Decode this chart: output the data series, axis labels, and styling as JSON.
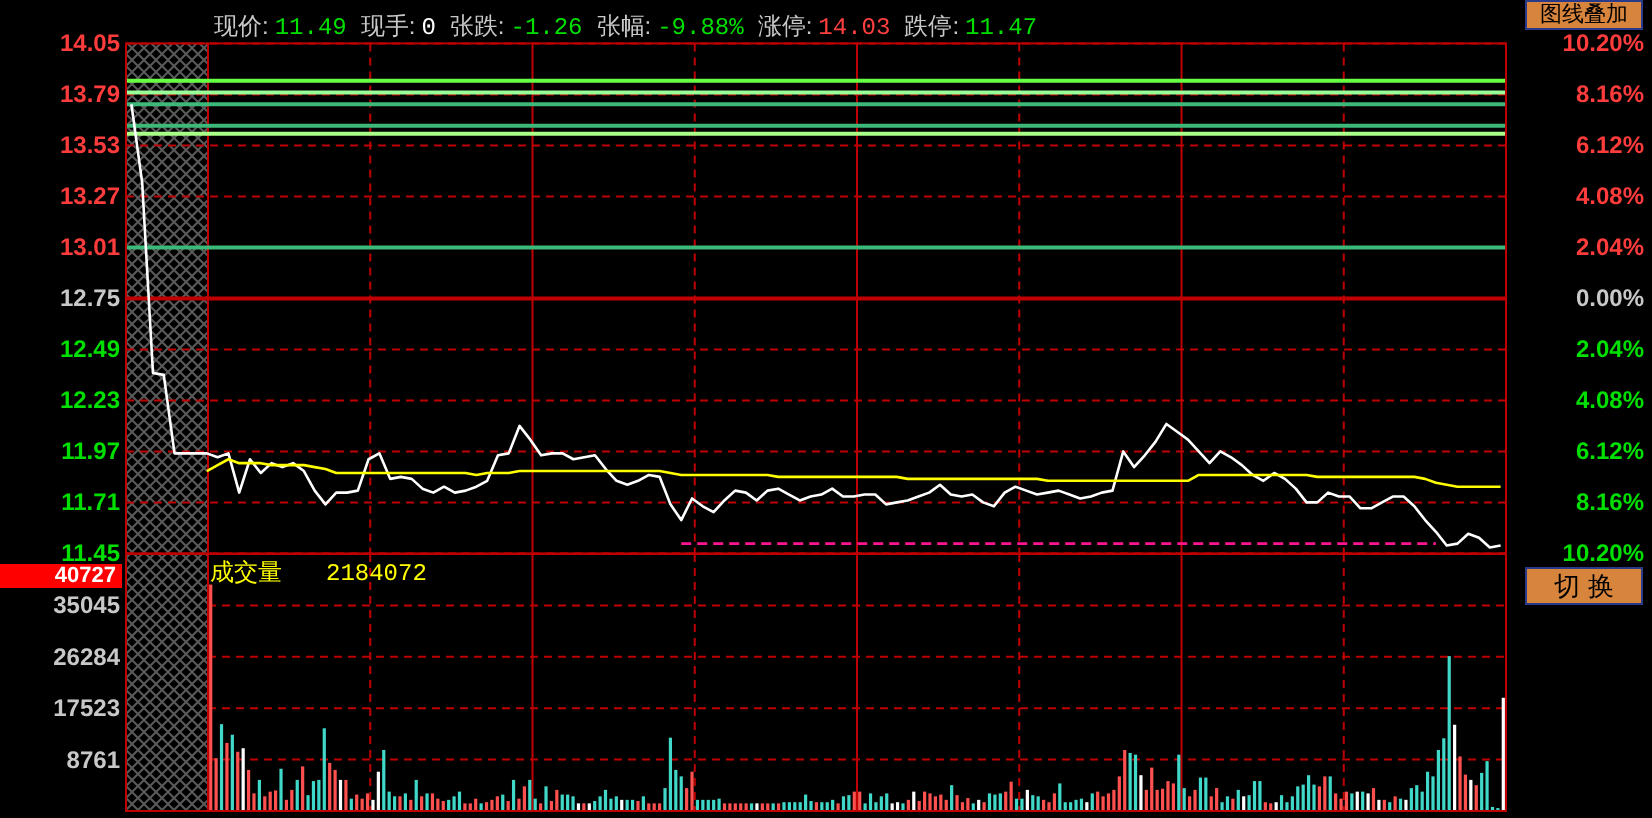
{
  "chart_data": [
    {
      "type": "line",
      "categories": [
        null,
        null,
        null,
        null,
        null,
        null,
        null,
        null,
        null,
        null,
        null,
        null,
        null,
        null,
        null,
        null,
        null,
        null,
        null,
        null,
        null,
        null,
        null,
        null,
        null,
        null,
        null,
        null,
        null,
        null,
        null,
        null,
        null,
        null,
        null,
        null,
        null,
        null,
        null,
        null,
        null,
        null,
        null,
        null,
        null,
        null,
        null,
        null,
        null,
        null,
        null,
        null,
        null,
        null,
        null,
        null,
        null,
        null,
        null,
        null,
        null,
        null,
        null,
        null,
        null,
        null,
        null,
        null,
        null,
        null,
        null,
        null,
        null,
        null,
        null,
        null,
        null,
        null,
        null,
        null,
        null,
        null,
        null,
        null,
        null,
        null,
        null,
        null,
        null,
        null,
        null,
        null,
        null,
        null,
        null,
        null,
        null,
        null,
        null,
        null,
        null,
        null,
        null,
        null,
        null,
        null,
        null,
        null,
        null,
        null,
        null,
        null,
        null,
        null,
        null,
        null,
        null,
        null,
        null,
        null,
        null,
        null,
        null,
        null,
        null,
        null,
        null,
        null
      ],
      "ylim": [
        11.45,
        14.05
      ],
      "yticks": [
        14.05,
        13.79,
        13.53,
        13.27,
        13.01,
        12.75,
        12.49,
        12.23,
        11.97,
        11.71,
        11.45
      ],
      "y2lim": [
        -10.2,
        10.2
      ],
      "y2ticks": [
        {
          "value": 10.2,
          "label": "10.20%"
        },
        {
          "value": 8.16,
          "label": "8.16%"
        },
        {
          "value": 6.12,
          "label": "6.12%"
        },
        {
          "value": 4.08,
          "label": "4.08%"
        },
        {
          "value": 2.04,
          "label": "2.04%"
        },
        {
          "value": 0,
          "label": "0.00%"
        },
        {
          "value": -2.04,
          "label": "2.04%"
        },
        {
          "value": -4.08,
          "label": "4.08%"
        },
        {
          "value": -6.12,
          "label": "6.12%"
        },
        {
          "value": -8.16,
          "label": "8.16%"
        },
        {
          "value": -10.2,
          "label": "10.20%"
        }
      ],
      "grid": true,
      "tick_labels": "y",
      "ref_lines": [
        {
          "axis": "y",
          "value": 12.75,
          "color": "#c00000"
        },
        {
          "axis": "y",
          "value": 13.86,
          "color": "#66ff44"
        },
        {
          "axis": "y",
          "value": 13.8,
          "color": "#99ff99"
        },
        {
          "axis": "y",
          "value": 13.74,
          "color": "#3cb878"
        },
        {
          "axis": "y",
          "value": 13.63,
          "color": "#3cb878"
        },
        {
          "axis": "y",
          "value": 13.59,
          "color": "#aaff88"
        },
        {
          "axis": "y",
          "value": 13.01,
          "color": "#3cb878"
        }
      ],
      "annotations": [
        "现价:",
        "11.49",
        "现手:",
        "0",
        "张跌:",
        "-1.26",
        "张幅:",
        "-9.88%",
        "涨停:",
        "14.03",
        "跌停:",
        "11.47",
        "图线叠加"
      ],
      "series": [
        {
          "color": "#ffffff",
          "values": [
            13.74,
            13.34,
            12.37,
            12.36,
            11.96,
            11.96,
            11.96,
            11.96,
            11.94,
            11.96,
            11.76,
            11.93,
            11.86,
            11.91,
            11.89,
            11.91,
            11.87,
            11.77,
            11.7,
            11.76,
            11.76,
            11.77,
            11.93,
            11.96,
            11.83,
            11.84,
            11.83,
            11.78,
            11.76,
            11.79,
            11.76,
            11.77,
            11.79,
            11.82,
            11.95,
            11.96,
            12.1,
            12.03,
            11.95,
            11.96,
            11.96,
            11.93,
            11.94,
            11.95,
            11.88,
            11.82,
            11.8,
            11.82,
            11.85,
            11.84,
            11.7,
            11.62,
            11.73,
            11.69,
            11.66,
            11.72,
            11.77,
            11.76,
            11.72,
            11.77,
            11.78,
            11.75,
            11.72,
            11.74,
            11.75,
            11.78,
            11.74,
            11.74,
            11.75,
            11.75,
            11.7,
            11.71,
            11.72,
            11.74,
            11.76,
            11.8,
            11.75,
            11.74,
            11.75,
            11.71,
            11.69,
            11.76,
            11.79,
            11.77,
            11.75,
            11.76,
            11.77,
            11.75,
            11.73,
            11.74,
            11.76,
            11.77,
            11.97,
            11.89,
            11.95,
            12.02,
            12.11,
            12.07,
            12.03,
            11.97,
            11.91,
            11.97,
            11.94,
            11.9,
            11.85,
            11.82,
            11.86,
            11.83,
            11.78,
            11.71,
            11.71,
            11.76,
            11.74,
            11.74,
            11.68,
            11.68,
            11.71,
            11.74,
            11.74,
            11.69,
            11.62,
            11.56,
            11.49,
            11.5,
            11.55,
            11.53,
            11.48,
            11.49
          ]
        },
        {
          "color": "#ffff00",
          "values": [
            null,
            null,
            null,
            null,
            null,
            null,
            null,
            11.87,
            11.9,
            11.93,
            11.91,
            11.91,
            11.91,
            11.9,
            11.9,
            11.9,
            11.9,
            11.89,
            11.88,
            11.86,
            11.86,
            11.86,
            11.86,
            11.86,
            11.86,
            11.86,
            11.86,
            11.86,
            11.86,
            11.86,
            11.86,
            11.86,
            11.85,
            11.86,
            11.86,
            11.86,
            11.87,
            11.87,
            11.87,
            11.87,
            11.87,
            11.87,
            11.87,
            11.87,
            11.87,
            11.87,
            11.87,
            11.87,
            11.87,
            11.87,
            11.86,
            11.85,
            11.85,
            11.85,
            11.85,
            11.85,
            11.85,
            11.85,
            11.85,
            11.85,
            11.84,
            11.84,
            11.84,
            11.84,
            11.84,
            11.84,
            11.84,
            11.84,
            11.84,
            11.84,
            11.84,
            11.84,
            11.83,
            11.83,
            11.83,
            11.83,
            11.83,
            11.83,
            11.83,
            11.83,
            11.83,
            11.83,
            11.83,
            11.83,
            11.83,
            11.82,
            11.82,
            11.82,
            11.82,
            11.82,
            11.82,
            11.82,
            11.82,
            11.82,
            11.82,
            11.82,
            11.82,
            11.82,
            11.82,
            11.85,
            11.85,
            11.85,
            11.85,
            11.85,
            11.85,
            11.85,
            11.85,
            11.85,
            11.85,
            11.85,
            11.84,
            11.84,
            11.84,
            11.84,
            11.84,
            11.84,
            11.84,
            11.84,
            11.84,
            11.84,
            11.83,
            11.81,
            11.8,
            11.79,
            11.79,
            11.79,
            11.79,
            11.79
          ]
        },
        {
          "color": "#ff1493",
          "line_style": "dashed",
          "values": [
            null,
            null,
            null,
            null,
            null,
            null,
            null,
            null,
            null,
            null,
            null,
            null,
            null,
            null,
            null,
            null,
            null,
            null,
            null,
            null,
            null,
            null,
            null,
            null,
            null,
            null,
            null,
            null,
            null,
            null,
            null,
            null,
            null,
            null,
            null,
            null,
            null,
            null,
            null,
            null,
            null,
            null,
            null,
            null,
            null,
            null,
            null,
            null,
            null,
            null,
            null,
            11.5,
            11.5,
            11.5,
            11.5,
            11.5,
            11.5,
            11.5,
            11.5,
            11.5,
            11.5,
            11.5,
            11.5,
            11.5,
            11.5,
            11.5,
            11.5,
            11.5,
            11.5,
            11.5,
            11.5,
            11.5,
            11.5,
            11.5,
            11.5,
            11.5,
            11.5,
            11.5,
            11.5,
            11.5,
            11.5,
            11.5,
            11.5,
            11.5,
            11.5,
            11.5,
            11.5,
            11.5,
            11.5,
            11.5,
            11.5,
            11.5,
            11.5,
            11.5,
            11.5,
            11.5,
            11.5,
            11.5,
            11.5,
            11.5,
            11.5,
            11.5,
            11.5,
            11.5,
            11.5,
            11.5,
            11.5,
            11.5,
            11.5,
            11.5,
            11.5,
            11.5,
            11.5,
            11.5,
            11.5,
            11.5,
            11.5,
            11.5,
            11.5,
            11.5,
            11.5,
            11.5,
            null,
            null,
            null,
            null,
            null,
            null
          ]
        }
      ]
    },
    {
      "type": "bar",
      "categories": [
        null,
        null,
        null,
        null,
        null,
        null,
        null,
        null,
        null,
        null,
        null,
        null,
        null,
        null,
        null,
        null,
        null,
        null,
        null,
        null,
        null,
        null,
        null,
        null,
        null,
        null,
        null,
        null,
        null,
        null,
        null,
        null,
        null,
        null,
        null,
        null,
        null,
        null,
        null,
        null,
        null,
        null,
        null,
        null,
        null,
        null,
        null,
        null,
        null,
        null,
        null,
        null,
        null,
        null,
        null,
        null,
        null,
        null,
        null,
        null,
        null,
        null,
        null,
        null,
        null,
        null,
        null,
        null,
        null,
        null,
        null,
        null,
        null,
        null,
        null,
        null,
        null,
        null,
        null,
        null,
        null,
        null,
        null,
        null,
        null,
        null,
        null,
        null,
        null,
        null,
        null,
        null,
        null,
        null,
        null,
        null,
        null,
        null,
        null,
        null,
        null,
        null,
        null,
        null,
        null,
        null,
        null,
        null,
        null,
        null,
        null,
        null,
        null,
        null,
        null,
        null,
        null,
        null,
        null,
        null,
        null,
        null,
        null,
        null,
        null,
        null,
        null,
        null,
        null,
        null,
        null,
        null,
        null,
        null,
        null,
        null,
        null,
        null,
        null,
        null,
        null,
        null,
        null,
        null,
        null,
        null,
        null,
        null,
        null,
        null,
        null,
        null,
        null,
        null,
        null,
        null,
        null,
        null,
        null,
        null,
        null,
        null,
        null,
        null,
        null,
        null,
        null,
        null,
        null,
        null,
        null,
        null,
        null,
        null,
        null,
        null,
        null,
        null,
        null,
        null,
        null,
        null,
        null,
        null,
        null,
        null,
        null,
        null,
        null,
        null,
        null,
        null,
        null,
        null,
        null,
        null,
        null,
        null,
        null,
        null,
        null,
        null,
        null,
        null,
        null,
        null,
        null,
        null,
        null,
        null,
        null,
        null,
        null,
        null,
        null,
        null,
        null,
        null,
        null,
        null,
        null,
        null,
        null,
        null,
        null,
        null,
        null,
        null,
        null,
        null,
        null,
        null,
        null,
        null,
        null,
        null,
        null,
        null,
        null,
        null
      ],
      "ylim": [
        0,
        43805
      ],
      "yticks": [
        8761,
        17523,
        26284,
        35045
      ],
      "grid": true,
      "tick_labels": "y",
      "annotations": [
        "成交量",
        "2184072",
        "40727",
        "切 换"
      ],
      "values": [
        38600,
        9000,
        14800,
        11600,
        13000,
        10100,
        10700,
        7000,
        3000,
        5300,
        2500,
        3300,
        3500,
        7200,
        1900,
        3600,
        5300,
        7600,
        2700,
        5100,
        5300,
        14100,
        8200,
        7000,
        5300,
        5300,
        2100,
        2800,
        2100,
        3000,
        1900,
        6700,
        10400,
        3300,
        2500,
        2500,
        3000,
        1900,
        5300,
        2500,
        3000,
        3000,
        2100,
        1700,
        1900,
        2500,
        3300,
        1300,
        1300,
        2100,
        1300,
        1500,
        1900,
        2500,
        2800,
        1700,
        5300,
        2100,
        4200,
        5300,
        2100,
        1300,
        4200,
        1700,
        3600,
        2800,
        2800,
        2500,
        1300,
        1300,
        1300,
        1700,
        2500,
        3600,
        2100,
        2500,
        1900,
        1900,
        1900,
        1700,
        2500,
        1300,
        1300,
        1300,
        3900,
        12500,
        7000,
        5900,
        3900,
        6700,
        1900,
        1900,
        1900,
        1900,
        2100,
        1300,
        1300,
        1300,
        1300,
        1300,
        1300,
        1300,
        1300,
        1300,
        1300,
        1300,
        1500,
        1500,
        1500,
        1500,
        2800,
        1700,
        1500,
        1500,
        1500,
        1900,
        1300,
        2500,
        2700,
        3300,
        3300,
        1300,
        3000,
        1500,
        2500,
        3000,
        1300,
        1500,
        1300,
        1900,
        3300,
        1700,
        3300,
        3000,
        2500,
        2800,
        1900,
        4400,
        2700,
        1500,
        2200,
        1300,
        1900,
        1500,
        3000,
        2800,
        3000,
        3300,
        5000,
        2100,
        2100,
        3600,
        2700,
        2500,
        1900,
        1500,
        3000,
        4700,
        1500,
        1500,
        1900,
        2100,
        1500,
        3000,
        3300,
        2500,
        3000,
        3600,
        5900,
        10400,
        9900,
        9600,
        6100,
        3600,
        7400,
        3600,
        3800,
        5100,
        4700,
        9600,
        3900,
        2500,
        3600,
        5700,
        5700,
        2500,
        3900,
        1500,
        2500,
        2100,
        3600,
        2500,
        2700,
        5100,
        5100,
        1500,
        1300,
        1500,
        2700,
        1500,
        2500,
        4200,
        4500,
        6100,
        4500,
        4200,
        5900,
        5900,
        3000,
        2100,
        3300,
        3000,
        3300,
        3300,
        3000,
        3900,
        1900,
        1900,
        1500,
        2500,
        2100,
        1900,
        3900,
        4400,
        3300,
        6700,
        5900,
        10400,
        12400,
        26400,
        14700,
        9300,
        6200,
        5300,
        4400,
        6500,
        8500,
        700,
        500,
        19300
      ],
      "colors": [
        "#ff5050",
        "#ff5050",
        "#40d8c8",
        "#ff5050",
        "#40d8c8",
        "#ff5050",
        "#ffffff",
        "#ff5050",
        "#ff5050",
        "#40d8c8",
        "#ff5050",
        "#ff5050",
        "#ff5050",
        "#40d8c8",
        "#ff5050",
        "#ff5050",
        "#40d8c8",
        "#ff5050",
        "#40d8c8",
        "#40d8c8",
        "#40d8c8",
        "#40d8c8",
        "#ff5050",
        "#ff5050",
        "#ffffff",
        "#ff5050",
        "#40d8c8",
        "#ff5050",
        "#ff5050",
        "#ff5050",
        "#ffffff",
        "#ffffff",
        "#40d8c8",
        "#40d8c8",
        "#40d8c8",
        "#ff5050",
        "#40d8c8",
        "#ff5050",
        "#40d8c8",
        "#ff5050",
        "#40d8c8",
        "#ff5050",
        "#ff5050",
        "#ff5050",
        "#40d8c8",
        "#40d8c8",
        "#40d8c8",
        "#ff5050",
        "#ff5050",
        "#ff5050",
        "#40d8c8",
        "#ff5050",
        "#ff5050",
        "#ff5050",
        "#40d8c8",
        "#ff5050",
        "#40d8c8",
        "#ff5050",
        "#ff5050",
        "#40d8c8",
        "#40d8c8",
        "#ff5050",
        "#40d8c8",
        "#ff5050",
        "#ff5050",
        "#40d8c8",
        "#40d8c8",
        "#40d8c8",
        "#ffffff",
        "#ff5050",
        "#ffffff",
        "#40d8c8",
        "#40d8c8",
        "#40d8c8",
        "#40d8c8",
        "#40d8c8",
        "#ffffff",
        "#40d8c8",
        "#40d8c8",
        "#ff5050",
        "#40d8c8",
        "#ff5050",
        "#ff5050",
        "#ff5050",
        "#40d8c8",
        "#40d8c8",
        "#40d8c8",
        "#40d8c8",
        "#ff5050",
        "#ff5050",
        "#40d8c8",
        "#40d8c8",
        "#40d8c8",
        "#40d8c8",
        "#40d8c8",
        "#ff5050",
        "#ff5050",
        "#ff5050",
        "#ff5050",
        "#ff5050",
        "#40d8c8",
        "#ffffff",
        "#ff5050",
        "#ff5050",
        "#40d8c8",
        "#ff5050",
        "#40d8c8",
        "#40d8c8",
        "#40d8c8",
        "#40d8c8",
        "#40d8c8",
        "#40d8c8",
        "#ff5050",
        "#40d8c8",
        "#40d8c8",
        "#40d8c8",
        "#ff5050",
        "#40d8c8",
        "#40d8c8",
        "#ff5050",
        "#ff5050",
        "#40d8c8",
        "#40d8c8",
        "#40d8c8",
        "#40d8c8",
        "#40d8c8",
        "#ffffff",
        "#ffffff",
        "#40d8c8",
        "#ff5050",
        "#ffffff",
        "#ff5050",
        "#ff5050",
        "#ff5050",
        "#ff5050",
        "#ff5050",
        "#ff5050",
        "#40d8c8",
        "#ff5050",
        "#ff5050",
        "#ff5050",
        "#40d8c8",
        "#ffffff",
        "#ff5050",
        "#40d8c8",
        "#40d8c8",
        "#40d8c8",
        "#ff5050",
        "#ff5050",
        "#40d8c8",
        "#40d8c8",
        "#ffffff",
        "#40d8c8",
        "#40d8c8",
        "#ff5050",
        "#ff5050",
        "#ff5050",
        "#40d8c8",
        "#40d8c8",
        "#40d8c8",
        "#40d8c8",
        "#40d8c8",
        "#ffffff",
        "#40d8c8",
        "#ff5050",
        "#ff5050",
        "#ff5050",
        "#ff5050",
        "#ff5050",
        "#ff5050",
        "#40d8c8",
        "#40d8c8",
        "#ffffff",
        "#ff5050",
        "#ff5050",
        "#ff5050",
        "#ff5050",
        "#ff5050",
        "#ff5050",
        "#40d8c8",
        "#40d8c8",
        "#ff5050",
        "#ff5050",
        "#40d8c8",
        "#40d8c8",
        "#ff5050",
        "#ff5050",
        "#40d8c8",
        "#40d8c8",
        "#ff5050",
        "#40d8c8",
        "#ffffff",
        "#40d8c8",
        "#40d8c8",
        "#40d8c8",
        "#ff5050",
        "#ff5050",
        "#ffffff",
        "#40d8c8",
        "#40d8c8",
        "#40d8c8",
        "#40d8c8",
        "#40d8c8",
        "#40d8c8",
        "#40d8c8",
        "#ff5050",
        "#ff5050",
        "#40d8c8",
        "#ff5050",
        "#ff5050",
        "#ff5050",
        "#40d8c8",
        "#ffffff",
        "#40d8c8",
        "#ffffff",
        "#ff5050",
        "#ffffff",
        "#ff5050",
        "#40d8c8",
        "#ff5050",
        "#40d8c8",
        "#ffffff",
        "#40d8c8",
        "#40d8c8",
        "#40d8c8",
        "#40d8c8",
        "#40d8c8",
        "#40d8c8",
        "#40d8c8",
        "#40d8c8",
        "#ffffff",
        "#ff5050",
        "#ff5050",
        "#ffffff",
        "#ff5050",
        "#40d8c8",
        "#40d8c8",
        "#40d8c8",
        "#40d8c8",
        "#ffffff"
      ]
    }
  ]
}
